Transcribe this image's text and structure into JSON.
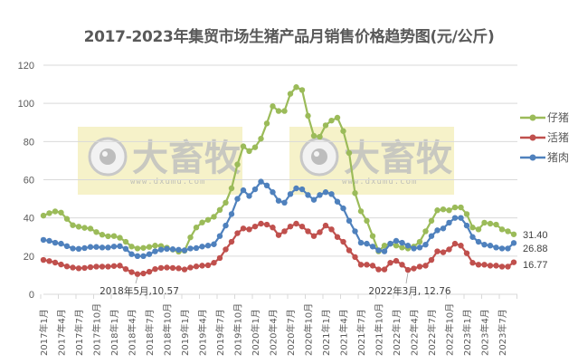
{
  "title": "2017-2023年集贸市场生猪产品月销售价格趋势图(元/公斤)",
  "watermark": {
    "brand": "大畜牧",
    "url": "www.dxumu.com",
    "bg": "#f5f0c0"
  },
  "legend": [
    {
      "label": "仔猪",
      "color": "#9bbb59"
    },
    {
      "label": "活猪",
      "color": "#c0504d"
    },
    {
      "label": "猪肉",
      "color": "#4f81bd"
    }
  ],
  "annotations": [
    {
      "text": "2018年5月,10.57",
      "month_index": 16
    },
    {
      "text": "2022年3月, 12.76",
      "month_index": 62
    }
  ],
  "end_labels": [
    {
      "series": "仔猪",
      "text": "31.40"
    },
    {
      "series": "猪肉",
      "text": "26.88"
    },
    {
      "series": "活猪",
      "text": "16.77"
    }
  ],
  "chart_data": {
    "type": "line",
    "title": "2017-2023年集贸市场生猪产品月销售价格趋势图(元/公斤)",
    "xlabel": "",
    "ylabel": "元/公斤",
    "ylim": [
      0,
      120
    ],
    "yticks": [
      0,
      20,
      40,
      60,
      80,
      100,
      120
    ],
    "grid": true,
    "legend_position": "right",
    "x_tick_labels": [
      "2017年1月",
      "2017年4月",
      "2017年7月",
      "2017年10月",
      "2018年1月",
      "2018年4月",
      "2018年7月",
      "2018年10月",
      "2019年1月",
      "2019年4月",
      "2019年7月",
      "2019年10月",
      "2020年1月",
      "2020年4月",
      "2020年7月",
      "2020年10月",
      "2021年1月",
      "2021年4月",
      "2021年7月",
      "2021年10月",
      "2022年1月",
      "2022年4月",
      "2022年7月",
      "2022年10月",
      "2023年1月",
      "2023年4月",
      "2023年7月"
    ],
    "x_start": "2017-01",
    "x_end": "2023-09",
    "series": [
      {
        "name": "仔猪",
        "color": "#9bbb59",
        "values": [
          41.2,
          42.5,
          43.4,
          42.8,
          39.5,
          36.2,
          35.4,
          34.8,
          34.4,
          32.6,
          31.2,
          30.4,
          30.5,
          29.6,
          27.5,
          25.0,
          24.0,
          24.3,
          24.8,
          25.5,
          25.3,
          24.4,
          23.4,
          22.3,
          22.8,
          29.8,
          35.0,
          37.6,
          39.0,
          40.6,
          44.2,
          48.0,
          55.5,
          68.0,
          77.5,
          75.0,
          77.0,
          81.5,
          89.5,
          98.5,
          96.0,
          96.0,
          105.0,
          108.5,
          107.0,
          93.5,
          83.0,
          82.5,
          88.5,
          91.0,
          92.5,
          85.5,
          74.0,
          53.0,
          43.5,
          38.5,
          30.5,
          22.5,
          25.5,
          26.5,
          25.5,
          24.5,
          24.0,
          25.0,
          27.5,
          33.0,
          38.5,
          44.0,
          44.5,
          44.0,
          45.5,
          45.5,
          42.0,
          35.0,
          34.0,
          37.5,
          37.0,
          36.5,
          34.0,
          33.0,
          31.4
        ]
      },
      {
        "name": "活猪",
        "color": "#c0504d",
        "values": [
          18.0,
          17.4,
          16.6,
          15.6,
          14.6,
          14.0,
          13.6,
          13.8,
          14.2,
          14.5,
          14.5,
          14.5,
          14.8,
          15.0,
          13.2,
          11.6,
          10.57,
          10.9,
          11.8,
          13.2,
          13.8,
          14.0,
          13.8,
          13.6,
          13.0,
          14.0,
          14.6,
          15.0,
          15.2,
          16.5,
          19.0,
          23.5,
          27.5,
          32.0,
          34.5,
          34.0,
          35.5,
          37.0,
          36.5,
          35.0,
          31.0,
          33.0,
          35.5,
          37.0,
          35.5,
          33.0,
          30.5,
          32.5,
          36.0,
          34.0,
          30.0,
          27.5,
          23.0,
          19.5,
          15.5,
          15.5,
          15.0,
          13.0,
          13.0,
          16.5,
          17.5,
          15.5,
          12.76,
          13.5,
          14.5,
          15.0,
          18.0,
          22.5,
          22.0,
          23.5,
          26.5,
          25.5,
          21.5,
          16.5,
          15.5,
          15.5,
          15.0,
          15.0,
          14.5,
          14.5,
          16.77
        ]
      },
      {
        "name": "猪肉",
        "color": "#4f81bd",
        "values": [
          28.5,
          28.0,
          27.0,
          26.5,
          25.2,
          24.0,
          23.8,
          24.2,
          24.8,
          24.8,
          24.5,
          24.5,
          25.0,
          25.2,
          23.8,
          21.0,
          20.0,
          20.0,
          21.0,
          22.5,
          23.4,
          23.8,
          23.6,
          23.3,
          23.0,
          24.0,
          24.2,
          25.0,
          25.5,
          26.2,
          30.5,
          36.0,
          42.0,
          50.0,
          54.5,
          51.5,
          55.0,
          59.0,
          57.0,
          53.5,
          49.0,
          48.0,
          52.5,
          55.5,
          55.0,
          52.0,
          49.5,
          52.0,
          53.5,
          52.5,
          48.5,
          45.0,
          38.5,
          33.0,
          27.0,
          26.5,
          25.0,
          23.0,
          22.5,
          26.5,
          28.0,
          27.0,
          25.5,
          24.0,
          24.5,
          26.0,
          30.5,
          33.5,
          34.5,
          37.5,
          40.0,
          40.0,
          36.0,
          30.0,
          27.5,
          26.0,
          25.5,
          24.5,
          24.0,
          24.0,
          26.88
        ]
      }
    ]
  }
}
